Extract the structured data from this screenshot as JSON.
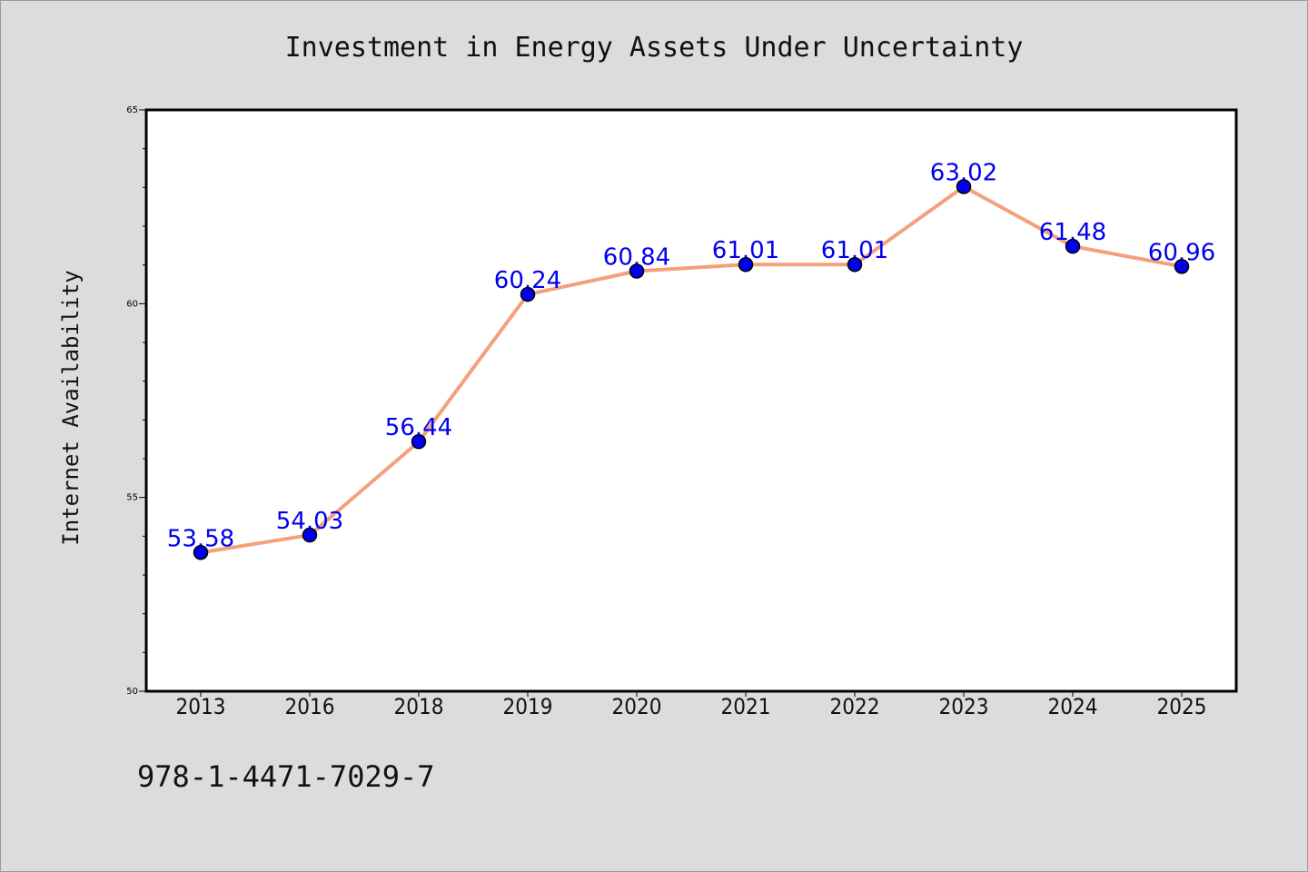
{
  "chart_data": {
    "type": "line",
    "title": "Investment in Energy Assets Under Uncertainty",
    "xlabel": "",
    "ylabel": "Internet Availability",
    "categories": [
      "2013",
      "2016",
      "2018",
      "2019",
      "2020",
      "2021",
      "2022",
      "2023",
      "2024",
      "2025"
    ],
    "series": [
      {
        "values": [
          53.58,
          54.03,
          56.44,
          60.24,
          60.84,
          61.01,
          61.01,
          63.02,
          61.48,
          60.96
        ],
        "labels": [
          "53.58",
          "54.03",
          "56.44",
          "60.24",
          "60.84",
          "61.01",
          "61.01",
          "63.02",
          "61.48",
          "60.96"
        ]
      }
    ],
    "ylim": [
      50,
      65
    ],
    "yticks": [
      "50",
      "55",
      "60",
      "65"
    ],
    "grid": false,
    "colors": {
      "line": "#f4a07c",
      "marker": "#0000ee",
      "label": "#0000ee",
      "background": "#dcdcdc",
      "plot": "#ffffff"
    }
  },
  "footer": {
    "code": "978-1-4471-7029-7"
  }
}
